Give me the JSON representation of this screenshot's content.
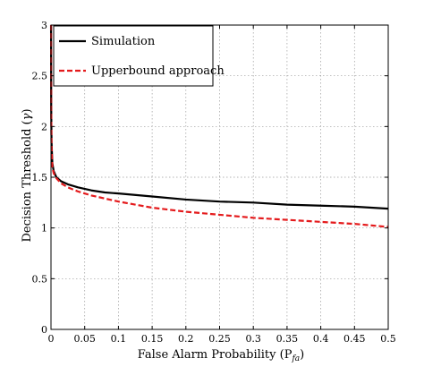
{
  "chart_data": {
    "type": "line",
    "xlabel": "False Alarm Probability (P",
    "xlabel_sub": "fa",
    "xlabel_close": ")",
    "ylabel": "Decision Threshold (",
    "ylabel_symbol": "γ",
    "ylabel_close": ")",
    "xlim": [
      0,
      0.5
    ],
    "ylim": [
      0,
      3
    ],
    "grid": true,
    "legend_position": "top-left",
    "x_ticks": [
      0,
      0.05,
      0.1,
      0.15,
      0.2,
      0.25,
      0.3,
      0.35,
      0.4,
      0.45,
      0.5
    ],
    "x_tick_labels": [
      "0",
      "0.05",
      "0.1",
      "0.15",
      "0.2",
      "0.25",
      "0.3",
      "0.35",
      "0.4",
      "0.45",
      "0.5"
    ],
    "y_ticks": [
      0,
      0.5,
      1,
      1.5,
      2,
      2.5,
      3
    ],
    "y_tick_labels": [
      "0",
      "0.5",
      "1",
      "1.5",
      "2",
      "2.5",
      "3"
    ],
    "series": [
      {
        "name": "Simulation",
        "color": "#000000",
        "dash": "solid",
        "x": [
          0.0001,
          0.0003,
          0.0008,
          0.002,
          0.004,
          0.008,
          0.015,
          0.025,
          0.04,
          0.06,
          0.08,
          0.1,
          0.15,
          0.2,
          0.25,
          0.3,
          0.35,
          0.4,
          0.45,
          0.5
        ],
        "y": [
          3.0,
          2.2,
          1.85,
          1.64,
          1.56,
          1.5,
          1.46,
          1.43,
          1.4,
          1.37,
          1.35,
          1.34,
          1.31,
          1.28,
          1.26,
          1.25,
          1.23,
          1.22,
          1.21,
          1.19
        ]
      },
      {
        "name": "Upperbound approach",
        "color": "#e41a1c",
        "dash": "dashed",
        "x": [
          0.0001,
          0.0003,
          0.0008,
          0.002,
          0.004,
          0.008,
          0.015,
          0.025,
          0.04,
          0.06,
          0.08,
          0.1,
          0.15,
          0.2,
          0.25,
          0.3,
          0.35,
          0.4,
          0.45,
          0.5
        ],
        "y": [
          3.0,
          2.2,
          1.8,
          1.6,
          1.54,
          1.49,
          1.44,
          1.4,
          1.36,
          1.32,
          1.29,
          1.26,
          1.2,
          1.16,
          1.13,
          1.1,
          1.08,
          1.06,
          1.04,
          1.01
        ]
      }
    ]
  }
}
